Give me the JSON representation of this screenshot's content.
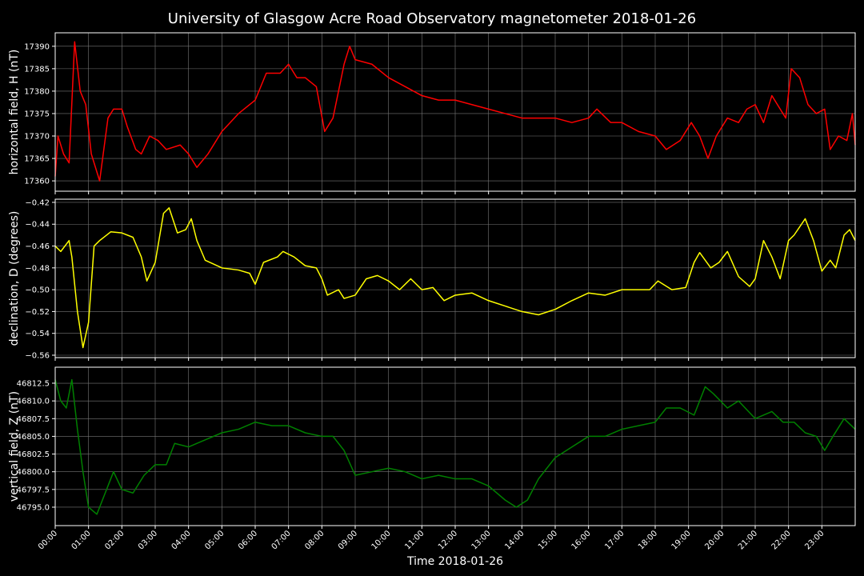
{
  "chart_data": [
    {
      "type": "line",
      "title": "University of Glasgow Acre Road Observatory magnetometer 2018-01-26",
      "ylabel": "horizontal field, H (nT)",
      "color": "#ff0000",
      "grid": true,
      "xlim": [
        "00:00",
        "24:00"
      ],
      "xticks": [
        "00:00",
        "01:00",
        "02:00",
        "03:00",
        "04:00",
        "05:00",
        "06:00",
        "07:00",
        "08:00",
        "09:00",
        "10:00",
        "11:00",
        "12:00",
        "13:00",
        "14:00",
        "15:00",
        "16:00",
        "17:00",
        "18:00",
        "19:00",
        "20:00",
        "21:00",
        "22:00",
        "23:00"
      ],
      "ylim": [
        17357.7,
        17393.0
      ],
      "yticks": [
        17360,
        17365,
        17370,
        17375,
        17380,
        17385,
        17390
      ],
      "x": [
        "00:00",
        "00:05",
        "00:15",
        "00:25",
        "00:35",
        "00:45",
        "00:55",
        "01:05",
        "01:20",
        "01:35",
        "01:45",
        "02:00",
        "02:10",
        "02:25",
        "02:35",
        "02:50",
        "03:05",
        "03:20",
        "03:45",
        "04:00",
        "04:15",
        "04:35",
        "05:00",
        "05:30",
        "06:00",
        "06:20",
        "06:45",
        "07:00",
        "07:15",
        "07:30",
        "07:50",
        "08:05",
        "08:20",
        "08:40",
        "08:50",
        "09:00",
        "09:30",
        "10:00",
        "10:30",
        "11:00",
        "11:30",
        "12:00",
        "12:30",
        "13:00",
        "13:30",
        "14:00",
        "14:30",
        "15:00",
        "15:30",
        "16:00",
        "16:15",
        "16:40",
        "17:00",
        "17:30",
        "18:00",
        "18:20",
        "18:45",
        "19:05",
        "19:20",
        "19:35",
        "19:50",
        "20:10",
        "20:30",
        "20:45",
        "21:00",
        "21:15",
        "21:30",
        "21:45",
        "21:55",
        "22:05",
        "22:20",
        "22:35",
        "22:50",
        "23:05",
        "23:15",
        "23:30",
        "23:45",
        "23:55",
        "24:00"
      ],
      "values": [
        17361,
        17370,
        17366,
        17364,
        17391,
        17380,
        17377,
        17366,
        17360,
        17374,
        17376,
        17376,
        17372,
        17367,
        17366,
        17370,
        17369,
        17367,
        17368,
        17366,
        17363,
        17366,
        17371,
        17375,
        17378,
        17384,
        17384,
        17386,
        17383,
        17383,
        17381,
        17371,
        17374,
        17386,
        17390,
        17387,
        17386,
        17383,
        17381,
        17379,
        17378,
        17378,
        17377,
        17376,
        17375,
        17374,
        17374,
        17374,
        17373,
        17374,
        17376,
        17373,
        17373,
        17371,
        17370,
        17367,
        17369,
        17373,
        17370,
        17365,
        17370,
        17374,
        17373,
        17376,
        17377,
        17373,
        17379,
        17376,
        17374,
        17385,
        17383,
        17377,
        17375,
        17376,
        17367,
        17370,
        17369,
        17375,
        17368
      ]
    },
    {
      "type": "line",
      "ylabel": "declination, D (degrees)",
      "color": "#ffff00",
      "grid": true,
      "xlim": [
        "00:00",
        "24:00"
      ],
      "xticks": [
        "00:00",
        "01:00",
        "02:00",
        "03:00",
        "04:00",
        "05:00",
        "06:00",
        "07:00",
        "08:00",
        "09:00",
        "10:00",
        "11:00",
        "12:00",
        "13:00",
        "14:00",
        "15:00",
        "16:00",
        "17:00",
        "18:00",
        "19:00",
        "20:00",
        "21:00",
        "22:00",
        "23:00"
      ],
      "ylim": [
        -0.5622,
        -0.4171
      ],
      "yticks": [
        {
          "value": -0.42,
          "label": "−0.42"
        },
        {
          "value": -0.44,
          "label": "−0.44"
        },
        {
          "value": -0.46,
          "label": "−0.46"
        },
        {
          "value": -0.48,
          "label": "−0.48"
        },
        {
          "value": -0.5,
          "label": "−0.50"
        },
        {
          "value": -0.52,
          "label": "−0.52"
        },
        {
          "value": -0.54,
          "label": "−0.54"
        },
        {
          "value": -0.56,
          "label": "−0.56"
        }
      ],
      "x": [
        "00:00",
        "00:10",
        "00:25",
        "00:30",
        "00:40",
        "00:50",
        "01:00",
        "01:10",
        "01:20",
        "01:40",
        "02:00",
        "02:20",
        "02:35",
        "02:45",
        "03:00",
        "03:15",
        "03:25",
        "03:40",
        "03:55",
        "04:05",
        "04:15",
        "04:30",
        "05:00",
        "05:30",
        "05:50",
        "06:00",
        "06:15",
        "06:40",
        "06:50",
        "07:10",
        "07:30",
        "07:50",
        "08:00",
        "08:10",
        "08:30",
        "08:40",
        "09:00",
        "09:20",
        "09:40",
        "10:00",
        "10:20",
        "10:40",
        "11:00",
        "11:20",
        "11:40",
        "12:00",
        "12:30",
        "13:00",
        "13:30",
        "14:00",
        "14:30",
        "15:00",
        "15:30",
        "16:00",
        "16:30",
        "17:00",
        "17:30",
        "17:50",
        "18:05",
        "18:30",
        "18:55",
        "19:10",
        "19:20",
        "19:40",
        "19:55",
        "20:10",
        "20:30",
        "20:50",
        "21:00",
        "21:15",
        "21:30",
        "21:45",
        "22:00",
        "22:10",
        "22:30",
        "22:45",
        "23:00",
        "23:15",
        "23:25",
        "23:40",
        "23:50",
        "24:00"
      ],
      "values": [
        -0.46,
        -0.465,
        -0.455,
        -0.47,
        -0.52,
        -0.553,
        -0.53,
        -0.46,
        -0.455,
        -0.447,
        -0.448,
        -0.452,
        -0.47,
        -0.492,
        -0.475,
        -0.43,
        -0.425,
        -0.448,
        -0.445,
        -0.435,
        -0.455,
        -0.473,
        -0.48,
        -0.482,
        -0.485,
        -0.495,
        -0.475,
        -0.47,
        -0.465,
        -0.47,
        -0.478,
        -0.48,
        -0.49,
        -0.505,
        -0.5,
        -0.508,
        -0.505,
        -0.49,
        -0.487,
        -0.492,
        -0.5,
        -0.49,
        -0.5,
        -0.498,
        -0.51,
        -0.505,
        -0.503,
        -0.51,
        -0.515,
        -0.52,
        -0.523,
        -0.518,
        -0.51,
        -0.503,
        -0.505,
        -0.5,
        -0.5,
        -0.5,
        -0.492,
        -0.5,
        -0.498,
        -0.475,
        -0.466,
        -0.48,
        -0.475,
        -0.465,
        -0.488,
        -0.497,
        -0.49,
        -0.455,
        -0.47,
        -0.49,
        -0.455,
        -0.45,
        -0.435,
        -0.455,
        -0.483,
        -0.473,
        -0.48,
        -0.45,
        -0.445,
        -0.455
      ]
    },
    {
      "type": "line",
      "ylabel": "vertical field, Z (nT)",
      "xlabel": "Time 2018-01-26",
      "color": "#008000",
      "grid": true,
      "xlim": [
        "00:00",
        "24:00"
      ],
      "xticks": [
        "00:00",
        "01:00",
        "02:00",
        "03:00",
        "04:00",
        "05:00",
        "06:00",
        "07:00",
        "08:00",
        "09:00",
        "10:00",
        "11:00",
        "12:00",
        "13:00",
        "14:00",
        "15:00",
        "16:00",
        "17:00",
        "18:00",
        "19:00",
        "20:00",
        "21:00",
        "22:00",
        "23:00"
      ],
      "ylim": [
        46792.4,
        46814.76
      ],
      "yticks": [
        {
          "value": 46795,
          "label": "46795.0"
        },
        46797.5,
        {
          "value": 46800,
          "label": "46800.0"
        },
        46802.5,
        {
          "value": 46805,
          "label": "46805.0"
        },
        46807.5,
        {
          "value": 46810,
          "label": "46810.0"
        },
        46812.5
      ],
      "x": [
        "00:00",
        "00:10",
        "00:20",
        "00:30",
        "00:40",
        "00:50",
        "01:00",
        "01:15",
        "01:30",
        "01:45",
        "02:00",
        "02:20",
        "02:40",
        "03:00",
        "03:20",
        "03:35",
        "04:00",
        "04:30",
        "05:00",
        "05:30",
        "06:00",
        "06:30",
        "07:00",
        "07:30",
        "08:00",
        "08:20",
        "08:40",
        "09:00",
        "09:30",
        "10:00",
        "10:30",
        "11:00",
        "11:30",
        "12:00",
        "12:30",
        "13:00",
        "13:30",
        "13:50",
        "14:10",
        "14:30",
        "15:00",
        "15:30",
        "16:00",
        "16:30",
        "17:00",
        "17:30",
        "18:00",
        "18:20",
        "18:45",
        "19:10",
        "19:30",
        "19:45",
        "20:10",
        "20:30",
        "21:00",
        "21:30",
        "21:50",
        "22:10",
        "22:30",
        "22:50",
        "23:05",
        "23:20",
        "23:40",
        "24:00"
      ],
      "values": [
        46813,
        46810,
        46809,
        46813,
        46806,
        46800,
        46795,
        46794,
        46797,
        46800,
        46797.5,
        46797,
        46799.5,
        46801,
        46801,
        46804,
        46803.5,
        46804.5,
        46805.5,
        46806,
        46807,
        46806.5,
        46806.5,
        46805.5,
        46805,
        46805,
        46803,
        46799.5,
        46800,
        46800.5,
        46800,
        46799,
        46799.5,
        46799,
        46799,
        46798,
        46796,
        46795,
        46796,
        46799,
        46802,
        46803.5,
        46805,
        46805,
        46806,
        46806.5,
        46807,
        46809,
        46809,
        46808,
        46812,
        46811,
        46809,
        46810,
        46807.5,
        46808.5,
        46807,
        46807,
        46805.5,
        46805,
        46803,
        46805,
        46807.5,
        46806
      ]
    }
  ]
}
